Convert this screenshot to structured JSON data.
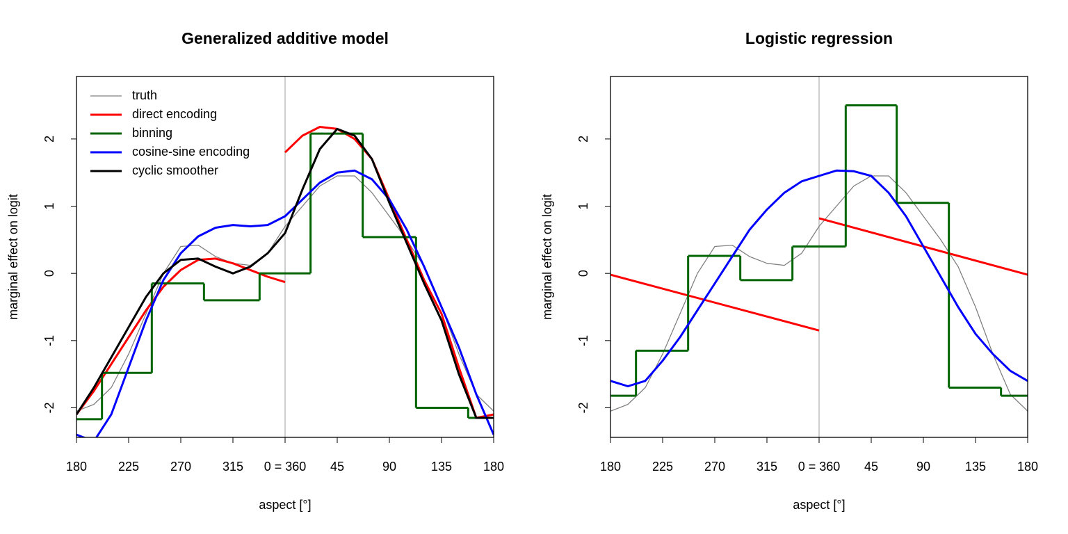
{
  "chart_data": [
    {
      "type": "line",
      "title": "Generalized additive model",
      "xlabel": "aspect [°]",
      "ylabel": "marginal effect on logit",
      "xlim": [
        180,
        540
      ],
      "ylim": [
        -2.44,
        2.93
      ],
      "xticks": [
        180,
        225,
        270,
        315,
        {
          "value": 360,
          "label": "0 = 360"
        },
        {
          "value": 405,
          "label": "45"
        },
        {
          "value": 450,
          "label": "90"
        },
        {
          "value": 495,
          "label": "135"
        },
        {
          "value": 540,
          "label": "180"
        }
      ],
      "yticks": [
        -2,
        -1,
        0,
        1,
        2
      ],
      "vline": 360,
      "vline_color": "#bebebe",
      "legend": "topleft",
      "series": [
        {
          "name": "truth",
          "color": "#808080",
          "lwd": 1.3,
          "x": [
            180,
            195,
            210,
            225,
            240,
            255,
            270,
            285,
            300,
            315,
            330,
            345,
            360,
            375,
            390,
            405,
            420,
            435,
            450,
            465,
            480,
            495,
            510,
            525,
            540
          ],
          "values": [
            -2.05,
            -1.95,
            -1.7,
            -1.2,
            -0.6,
            0.0,
            0.4,
            0.42,
            0.25,
            0.15,
            0.12,
            0.3,
            0.7,
            1.0,
            1.3,
            1.45,
            1.45,
            1.2,
            0.85,
            0.5,
            0.1,
            -0.5,
            -1.2,
            -1.8,
            -2.05
          ]
        },
        {
          "name": "direct encoding",
          "color": "#ff0000",
          "lwd": 3,
          "x": [
            180,
            195,
            210,
            225,
            240,
            255,
            270,
            285,
            300,
            315,
            330,
            345,
            360,
            null,
            360,
            375,
            390,
            405,
            420,
            435,
            450,
            465,
            480,
            495,
            510,
            525,
            540
          ],
          "values": [
            -2.1,
            -1.75,
            -1.35,
            -0.95,
            -0.55,
            -0.2,
            0.05,
            0.2,
            0.22,
            0.15,
            0.05,
            -0.05,
            -0.13,
            null,
            1.8,
            2.05,
            2.18,
            2.15,
            2.0,
            1.7,
            1.1,
            0.5,
            -0.1,
            -0.6,
            -1.4,
            -2.15,
            -2.1
          ]
        },
        {
          "name": "binning",
          "color": "#006400",
          "lwd": 3,
          "bins": [
            180,
            202,
            245,
            290,
            338,
            382,
            427,
            473,
            518,
            540
          ],
          "values": [
            -2.17,
            -1.48,
            -0.15,
            -0.4,
            0.0,
            2.08,
            0.54,
            -2.0,
            -2.15
          ]
        },
        {
          "name": "cosine-sine encoding",
          "color": "#0000ff",
          "lwd": 3,
          "x": [
            180,
            195,
            210,
            225,
            240,
            255,
            270,
            285,
            300,
            315,
            330,
            345,
            360,
            375,
            390,
            405,
            420,
            435,
            450,
            465,
            480,
            495,
            510,
            525,
            540
          ],
          "values": [
            -2.4,
            -2.5,
            -2.1,
            -1.4,
            -0.7,
            -0.1,
            0.3,
            0.55,
            0.68,
            0.72,
            0.7,
            0.72,
            0.85,
            1.1,
            1.35,
            1.5,
            1.53,
            1.4,
            1.1,
            0.65,
            0.1,
            -0.5,
            -1.1,
            -1.8,
            -2.4
          ]
        },
        {
          "name": "cyclic smoother",
          "color": "#000000",
          "lwd": 3,
          "x": [
            180,
            195,
            210,
            225,
            240,
            255,
            270,
            285,
            300,
            315,
            330,
            345,
            360,
            375,
            390,
            405,
            420,
            435,
            450,
            465,
            480,
            495,
            510,
            525,
            540
          ],
          "values": [
            -2.1,
            -1.7,
            -1.25,
            -0.8,
            -0.35,
            0.0,
            0.2,
            0.22,
            0.1,
            0.0,
            0.1,
            0.3,
            0.6,
            1.25,
            1.85,
            2.15,
            2.05,
            1.7,
            1.05,
            0.45,
            -0.15,
            -0.7,
            -1.5,
            -2.15,
            -2.15
          ]
        }
      ]
    },
    {
      "type": "line",
      "title": "Logistic regression",
      "xlabel": "aspect [°]",
      "ylabel": "marginal effect on logit",
      "xlim": [
        180,
        540
      ],
      "ylim": [
        -2.44,
        2.93
      ],
      "xticks": [
        180,
        225,
        270,
        315,
        {
          "value": 360,
          "label": "0 = 360"
        },
        {
          "value": 405,
          "label": "45"
        },
        {
          "value": 450,
          "label": "90"
        },
        {
          "value": 495,
          "label": "135"
        },
        {
          "value": 540,
          "label": "180"
        }
      ],
      "yticks": [
        -2,
        -1,
        0,
        1,
        2
      ],
      "vline": 360,
      "vline_color": "#bebebe",
      "series": [
        {
          "color": "#808080",
          "lwd": 1.3,
          "x": [
            180,
            195,
            210,
            225,
            240,
            255,
            270,
            285,
            300,
            315,
            330,
            345,
            360,
            375,
            390,
            405,
            420,
            435,
            450,
            465,
            480,
            495,
            510,
            525,
            540
          ],
          "values": [
            -2.05,
            -1.95,
            -1.7,
            -1.2,
            -0.6,
            0.0,
            0.4,
            0.42,
            0.25,
            0.15,
            0.12,
            0.3,
            0.7,
            1.0,
            1.3,
            1.45,
            1.45,
            1.2,
            0.85,
            0.5,
            0.1,
            -0.5,
            -1.2,
            -1.8,
            -2.05
          ]
        },
        {
          "color": "#ff0000",
          "lwd": 3,
          "x": [
            180,
            360,
            null,
            360,
            540
          ],
          "values": [
            -0.02,
            -0.85,
            null,
            0.82,
            -0.02
          ]
        },
        {
          "color": "#006400",
          "lwd": 3,
          "bins": [
            180,
            202,
            247,
            292,
            337,
            383,
            427,
            472,
            517,
            540
          ],
          "values": [
            -1.82,
            -1.15,
            0.26,
            -0.1,
            0.4,
            2.5,
            1.05,
            -1.7,
            -1.82
          ]
        },
        {
          "color": "#0000ff",
          "lwd": 3,
          "x": [
            180,
            195,
            210,
            225,
            240,
            255,
            270,
            285,
            300,
            315,
            330,
            345,
            360,
            375,
            390,
            405,
            420,
            435,
            450,
            465,
            480,
            495,
            510,
            525,
            540
          ],
          "values": [
            -1.6,
            -1.68,
            -1.6,
            -1.3,
            -0.95,
            -0.55,
            -0.15,
            0.25,
            0.65,
            0.95,
            1.2,
            1.37,
            1.45,
            1.53,
            1.52,
            1.45,
            1.2,
            0.85,
            0.4,
            -0.05,
            -0.5,
            -0.9,
            -1.2,
            -1.45,
            -1.6
          ]
        }
      ]
    }
  ]
}
